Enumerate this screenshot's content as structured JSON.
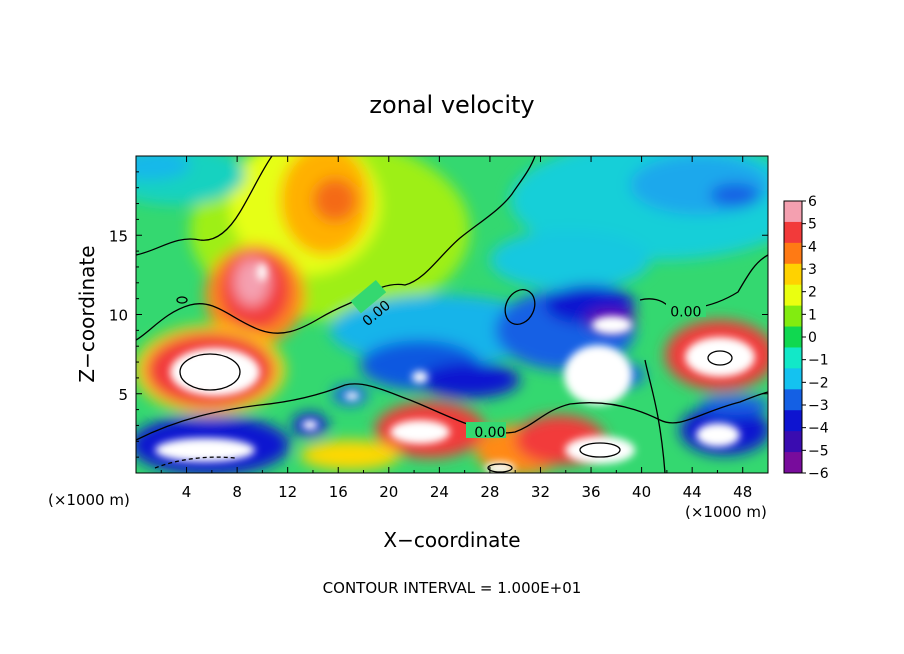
{
  "chart_data": {
    "type": "heatmap",
    "title": "zonal velocity",
    "xlabel": "X−coordinate",
    "ylabel": "Z−coordinate",
    "x_unit_left": "(×1000 m)",
    "x_unit_right": "(×1000 m)",
    "xlim": [
      0,
      50
    ],
    "ylim": [
      0,
      20
    ],
    "x_ticks": [
      4,
      8,
      12,
      16,
      20,
      24,
      28,
      32,
      36,
      40,
      44,
      48
    ],
    "y_ticks": [
      5,
      10,
      15
    ],
    "colorbar": {
      "range": [
        -6,
        6
      ],
      "ticks": [
        6,
        5,
        4,
        3,
        2,
        1,
        0,
        -1,
        -2,
        -3,
        -4,
        -5,
        -6
      ],
      "tick_labels": [
        "6",
        "5",
        "4",
        "3",
        "2",
        "1",
        "0",
        "−1",
        "−2",
        "−3",
        "−4",
        "−5",
        "−6"
      ],
      "colors": [
        "#f4a0b0",
        "#f23a3a",
        "#ff7a14",
        "#ffd200",
        "#eaff10",
        "#82ec10",
        "#10d850",
        "#12e8c8",
        "#14c2f0",
        "#1460e4",
        "#0e14d0",
        "#3a0cb0",
        "#780c9c"
      ]
    },
    "contour_labels": [
      {
        "text": "0.00",
        "x": 19.0,
        "y": 10.1
      },
      {
        "text": "0.00",
        "x": 43.5,
        "y": 10.2
      },
      {
        "text": "0.00",
        "x": 28.0,
        "y": 2.6
      }
    ],
    "contour_interval_text": "CONTOUR INTERVAL = 1.000E+01"
  }
}
